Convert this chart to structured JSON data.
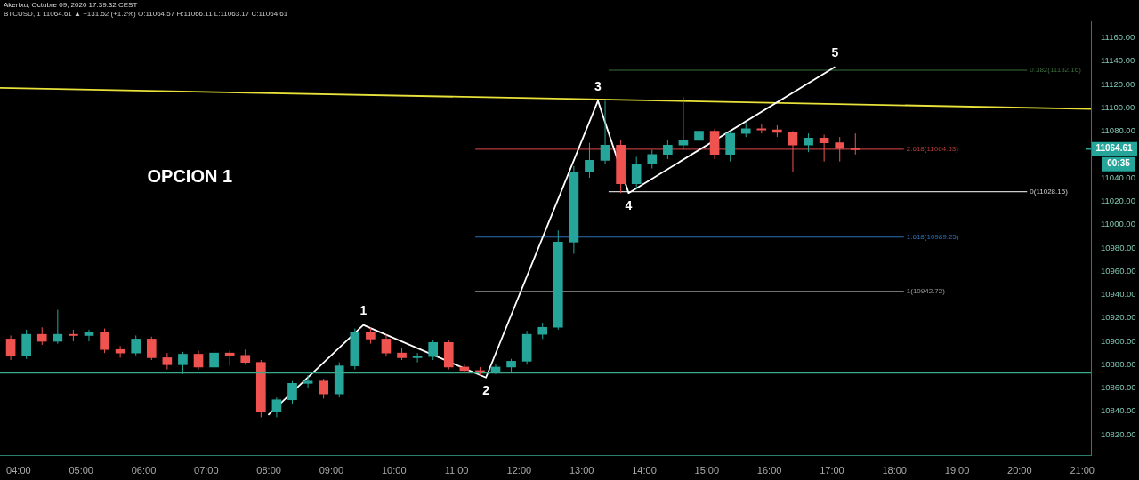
{
  "chart_data": {
    "type": "candlestick",
    "title": "Akertxu, Octubre 09, 2020 17:39:32 CEST",
    "subtitle": "BTCUSD, 1  11064.61 ▲ +131.52 (+1.2%) O:11064.57 H:11066.11 L:11063.17 C:11064.61",
    "xlim": [
      3.703,
      21.14
    ],
    "ylim": [
      10802,
      11174
    ],
    "xticks": [
      {
        "value": 4,
        "label": "04:00"
      },
      {
        "value": 5,
        "label": "05:00"
      },
      {
        "value": 6,
        "label": "06:00"
      },
      {
        "value": 7,
        "label": "07:00"
      },
      {
        "value": 8,
        "label": "08:00"
      },
      {
        "value": 9,
        "label": "09:00"
      },
      {
        "value": 10,
        "label": "10:00"
      },
      {
        "value": 11,
        "label": "11:00"
      },
      {
        "value": 12,
        "label": "12:00"
      },
      {
        "value": 13,
        "label": "13:00"
      },
      {
        "value": 14,
        "label": "14:00"
      },
      {
        "value": 15,
        "label": "15:00"
      },
      {
        "value": 16,
        "label": "16:00"
      },
      {
        "value": 17,
        "label": "17:00"
      },
      {
        "value": 18,
        "label": "18:00"
      },
      {
        "value": 19,
        "label": "19:00"
      },
      {
        "value": 20,
        "label": "20:00"
      },
      {
        "value": 21,
        "label": "21:00"
      }
    ],
    "yticks": [
      {
        "value": 10820,
        "label": "10820.00"
      },
      {
        "value": 10840,
        "label": "10840.00"
      },
      {
        "value": 10860,
        "label": "10860.00"
      },
      {
        "value": 10880,
        "label": "10880.00"
      },
      {
        "value": 10900,
        "label": "10900.00"
      },
      {
        "value": 10920,
        "label": "10920.00"
      },
      {
        "value": 10940,
        "label": "10940.00"
      },
      {
        "value": 10960,
        "label": "10960.00"
      },
      {
        "value": 10980,
        "label": "10980.00"
      },
      {
        "value": 11000,
        "label": "11000.00"
      },
      {
        "value": 11020,
        "label": "11020.00"
      },
      {
        "value": 11040,
        "label": "11040.00"
      },
      {
        "value": 11080,
        "label": "11080.00"
      },
      {
        "value": 11100,
        "label": "11100.00"
      },
      {
        "value": 11120,
        "label": "11120.00"
      },
      {
        "value": 11140,
        "label": "11140.00"
      },
      {
        "value": 11160,
        "label": "11160.00"
      }
    ],
    "series": [
      {
        "x": [
          3.875,
          4.125,
          4.375,
          4.625,
          4.875,
          5.125,
          5.375,
          5.625,
          5.875,
          6.125,
          6.375,
          6.625,
          6.875,
          7.125,
          7.375,
          7.625,
          7.875,
          8.125,
          8.375,
          8.625,
          8.875,
          9.125,
          9.375,
          9.625,
          9.875,
          10.125,
          10.375,
          10.625,
          10.875,
          11.125,
          11.375,
          11.625,
          11.875,
          12.125,
          12.375,
          12.625,
          12.875,
          13.125,
          13.375,
          13.625,
          13.875,
          14.125,
          14.375,
          14.625,
          14.875,
          15.125,
          15.375,
          15.625,
          15.875,
          16.125,
          16.375,
          16.625,
          16.875,
          17.125,
          17.375
        ],
        "ohlc": [
          [
            10902,
            10905,
            10884,
            10888
          ],
          [
            10888,
            10910,
            10885,
            10906
          ],
          [
            10906,
            10912,
            10897,
            10900
          ],
          [
            10900,
            10927,
            10898,
            10906
          ],
          [
            10906,
            10910,
            10900,
            10905
          ],
          [
            10905,
            10910,
            10900,
            10908
          ],
          [
            10908,
            10911,
            10890,
            10893
          ],
          [
            10893,
            10896,
            10886,
            10890
          ],
          [
            10890,
            10905,
            10888,
            10902
          ],
          [
            10902,
            10904,
            10884,
            10886
          ],
          [
            10886,
            10890,
            10876,
            10880
          ],
          [
            10880,
            10891,
            10872,
            10889
          ],
          [
            10889,
            10892,
            10876,
            10878
          ],
          [
            10878,
            10893,
            10876,
            10890
          ],
          [
            10890,
            10892,
            10879,
            10888
          ],
          [
            10888,
            10893,
            10880,
            10882
          ],
          [
            10882,
            10884,
            10835,
            10840
          ],
          [
            10840,
            10852,
            10835,
            10850
          ],
          [
            10850,
            10866,
            10846,
            10864
          ],
          [
            10864,
            10871,
            10860,
            10866
          ],
          [
            10866,
            10868,
            10851,
            10855
          ],
          [
            10855,
            10882,
            10852,
            10879
          ],
          [
            10879,
            10911,
            10876,
            10908
          ],
          [
            10908,
            10912,
            10898,
            10902
          ],
          [
            10902,
            10906,
            10887,
            10890
          ],
          [
            10890,
            10894,
            10884,
            10886
          ],
          [
            10886,
            10890,
            10882,
            10887
          ],
          [
            10887,
            10901,
            10884,
            10899
          ],
          [
            10899,
            10901,
            10876,
            10878
          ],
          [
            10878,
            10881,
            10873,
            10875
          ],
          [
            10875,
            10878,
            10871,
            10874
          ],
          [
            10874,
            10881,
            10872,
            10878
          ],
          [
            10878,
            10885,
            10874,
            10883
          ],
          [
            10883,
            10909,
            10880,
            10906
          ],
          [
            10906,
            10916,
            10902,
            10912
          ],
          [
            10912,
            10995,
            10910,
            10985
          ],
          [
            10985,
            11050,
            10975,
            11045
          ],
          [
            11045,
            11070,
            11040,
            11055
          ],
          [
            11055,
            11106,
            11052,
            11068
          ],
          [
            11068,
            11072,
            11027,
            11035
          ],
          [
            11035,
            11058,
            11030,
            11052
          ],
          [
            11052,
            11064,
            11048,
            11060
          ],
          [
            11060,
            11072,
            11056,
            11068
          ],
          [
            11068,
            11109,
            11064,
            11072
          ],
          [
            11072,
            11088,
            11066,
            11080
          ],
          [
            11080,
            11082,
            11056,
            11060
          ],
          [
            11060,
            11080,
            11054,
            11078
          ],
          [
            11078,
            11087,
            11075,
            11082
          ],
          [
            11082,
            11086,
            11078,
            11081
          ],
          [
            11081,
            11085,
            11075,
            11079
          ],
          [
            11079,
            11080,
            11045,
            11068
          ],
          [
            11068,
            11078,
            11062,
            11074
          ],
          [
            11074,
            11077,
            11054,
            11070
          ],
          [
            11070,
            11075,
            11054,
            11065
          ],
          [
            11065,
            11078,
            11060,
            11064
          ]
        ],
        "colors": [
          "#ef5350",
          "#26a69a",
          "#ef5350",
          "#26a69a",
          "#ef5350",
          "#26a69a",
          "#ef5350",
          "#ef5350",
          "#26a69a",
          "#ef5350",
          "#ef5350",
          "#26a69a",
          "#ef5350",
          "#26a69a",
          "#ef5350",
          "#ef5350",
          "#ef5350",
          "#26a69a",
          "#26a69a",
          "#26a69a",
          "#ef5350",
          "#26a69a",
          "#26a69a",
          "#ef5350",
          "#ef5350",
          "#ef5350",
          "#26a69a",
          "#26a69a",
          "#ef5350",
          "#ef5350",
          "#ef5350",
          "#26a69a",
          "#26a69a",
          "#26a69a",
          "#26a69a",
          "#26a69a",
          "#26a69a",
          "#26a69a",
          "#26a69a",
          "#ef5350",
          "#26a69a",
          "#26a69a",
          "#26a69a",
          "#26a69a",
          "#26a69a",
          "#ef5350",
          "#26a69a",
          "#26a69a",
          "#ef5350",
          "#ef5350",
          "#ef5350",
          "#26a69a",
          "#ef5350",
          "#ef5350",
          "#ef5350"
        ]
      },
      {
        "type": "line",
        "color": "#ffffff",
        "x": [
          7.99,
          9.51,
          11.47,
          13.26,
          13.75,
          17.05
        ],
        "values": [
          10837,
          10914,
          10869,
          11106,
          11027,
          11135
        ]
      },
      {
        "type": "line",
        "color": "#e8e23a",
        "x": [
          3.703,
          21.14
        ],
        "values": [
          11117,
          11099
        ]
      },
      {
        "type": "line",
        "name": "0.382(11132.16)",
        "color": "#3b6e3b",
        "x": [
          13.43,
          20.12
        ],
        "values": [
          11132.16,
          11132.16
        ]
      },
      {
        "type": "line",
        "name": "2.618(11064.53)",
        "color": "#b33b3b",
        "x": [
          11.3,
          18.15
        ],
        "values": [
          11064.53,
          11064.53
        ]
      },
      {
        "type": "line",
        "name": "0(11028.15)",
        "color": "#cccccc",
        "x": [
          13.43,
          20.12
        ],
        "values": [
          11028.15,
          11028.15
        ]
      },
      {
        "type": "line",
        "name": "1.618(10989.25)",
        "color": "#2e6fb5",
        "x": [
          11.3,
          18.15
        ],
        "values": [
          10989.25,
          10989.25
        ]
      },
      {
        "type": "line",
        "name": "1(10942.72)",
        "color": "#9a9a9a",
        "x": [
          11.3,
          18.15
        ],
        "values": [
          10942.72,
          10942.72
        ]
      }
    ],
    "ref_lines": [
      {
        "axis": "y",
        "value": 10873,
        "color": "#3aa88a"
      },
      {
        "axis": "y",
        "value": 11064.61,
        "label": "11064.61",
        "color": "#26a69a"
      }
    ],
    "annotations": [
      "OPCION 1",
      "00:35",
      {
        "text": "1",
        "x": 9.51,
        "y": 10914
      },
      {
        "text": "2",
        "x": 11.47,
        "y": 10869
      },
      {
        "text": "3",
        "x": 13.26,
        "y": 11106
      },
      {
        "text": "4",
        "x": 13.75,
        "y": 11027
      },
      {
        "text": "5",
        "x": 17.05,
        "y": 11135
      }
    ]
  }
}
